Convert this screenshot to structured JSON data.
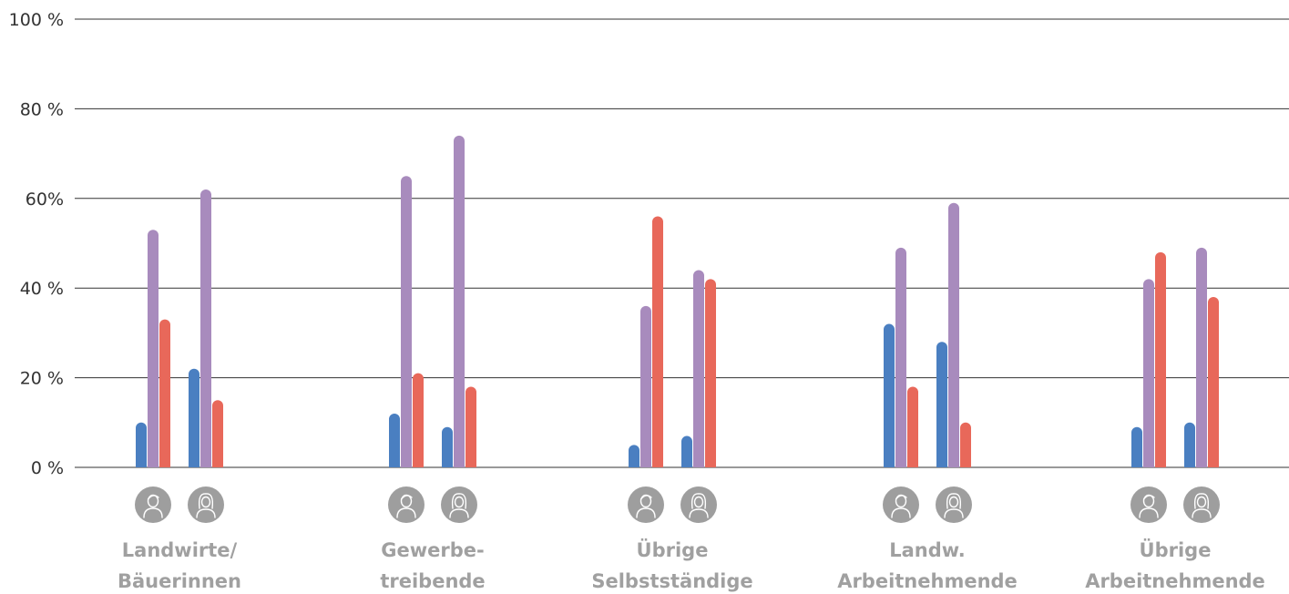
{
  "chart_data": {
    "type": "bar",
    "title": "",
    "xlabel": "",
    "ylabel": "",
    "ylim": [
      0,
      100
    ],
    "yticks": [
      {
        "value": 0,
        "label": "0 %"
      },
      {
        "value": 20,
        "label": "20 %"
      },
      {
        "value": 40,
        "label": "40 %"
      },
      {
        "value": 60,
        "label": "60%"
      },
      {
        "value": 80,
        "label": "80 %"
      },
      {
        "value": 100,
        "label": "100 %"
      }
    ],
    "grid": true,
    "legend": "none",
    "bar_colors": [
      "#4a7fc1",
      "#a88bbd",
      "#e8685a"
    ],
    "icon_names": [
      "male-person-icon",
      "female-person-icon"
    ],
    "categories": [
      {
        "label_lines": [
          "Landwirte/",
          "Bäuerinnen"
        ],
        "groups": [
          {
            "icon": "male-person-icon",
            "values": [
              10,
              53,
              33
            ]
          },
          {
            "icon": "female-person-icon",
            "values": [
              22,
              62,
              15
            ]
          }
        ]
      },
      {
        "label_lines": [
          "Gewerbe-",
          "treibende"
        ],
        "groups": [
          {
            "icon": "male-person-icon",
            "values": [
              12,
              65,
              21
            ]
          },
          {
            "icon": "female-person-icon",
            "values": [
              9,
              74,
              18
            ]
          }
        ]
      },
      {
        "label_lines": [
          "Übrige",
          "Selbstständige"
        ],
        "groups": [
          {
            "icon": "male-person-icon",
            "values": [
              5,
              36,
              56
            ]
          },
          {
            "icon": "female-person-icon",
            "values": [
              7,
              44,
              42
            ]
          }
        ]
      },
      {
        "label_lines": [
          "Landw.",
          "Arbeitnehmende"
        ],
        "groups": [
          {
            "icon": "male-person-icon",
            "values": [
              32,
              49,
              18
            ]
          },
          {
            "icon": "female-person-icon",
            "values": [
              28,
              59,
              10
            ]
          }
        ]
      },
      {
        "label_lines": [
          "Übrige",
          "Arbeitnehmende"
        ],
        "groups": [
          {
            "icon": "male-person-icon",
            "values": [
              9,
              42,
              48
            ]
          },
          {
            "icon": "female-person-icon",
            "values": [
              10,
              49,
              38
            ]
          }
        ]
      }
    ]
  }
}
